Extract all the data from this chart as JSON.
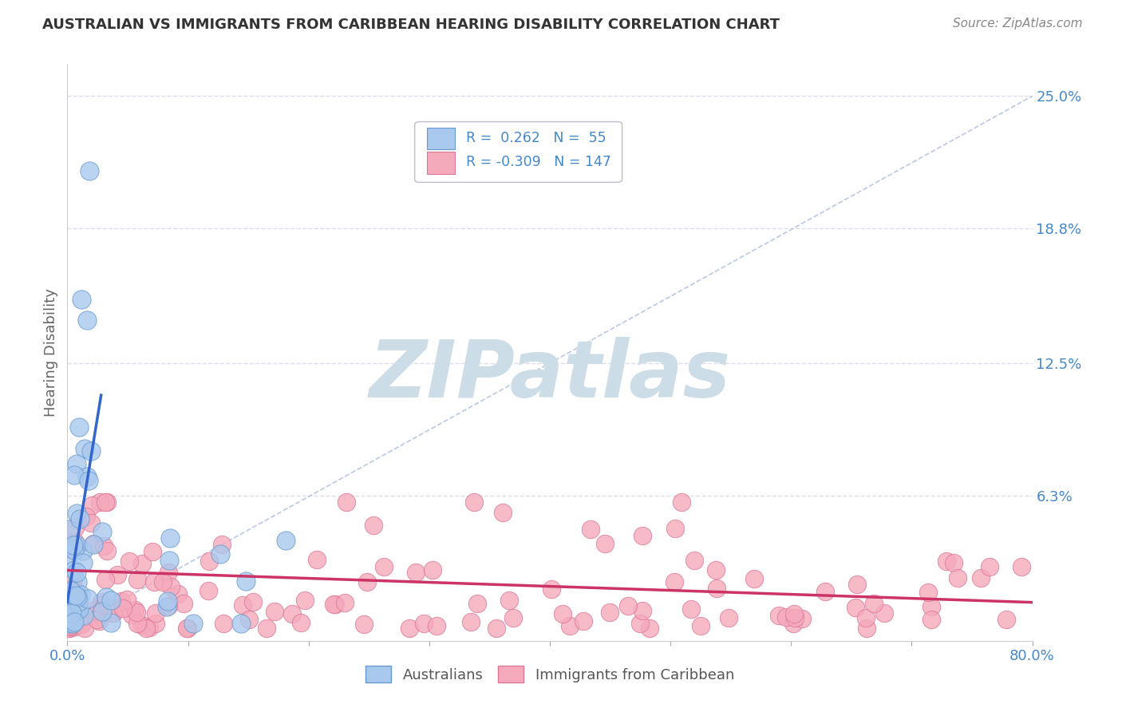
{
  "title": "AUSTRALIAN VS IMMIGRANTS FROM CARIBBEAN HEARING DISABILITY CORRELATION CHART",
  "source": "Source: ZipAtlas.com",
  "ylabel": "Hearing Disability",
  "xlim": [
    0.0,
    0.8
  ],
  "ylim": [
    -0.005,
    0.265
  ],
  "ytick_values": [
    0.0,
    0.063,
    0.125,
    0.188,
    0.25
  ],
  "ytick_labels": [
    "",
    "6.3%",
    "12.5%",
    "18.8%",
    "25.0%"
  ],
  "aus_color": "#A8C8EE",
  "aus_edge": "#6699CC",
  "carib_color": "#F5AABB",
  "carib_edge": "#DD7799",
  "trend_aus_color": "#3366CC",
  "trend_carib_color": "#CC3366",
  "diag_color": "#AABBDD",
  "aus_R": 0.262,
  "aus_N": 55,
  "carib_R": -0.309,
  "carib_N": 147,
  "watermark": "ZIPatlas",
  "watermark_color": "#CCDDE8",
  "background_color": "#FFFFFF",
  "grid_color": "#DDDDEE",
  "title_color": "#333333",
  "source_color": "#888888",
  "axis_label_color": "#4488CC",
  "ylabel_color": "#666666"
}
